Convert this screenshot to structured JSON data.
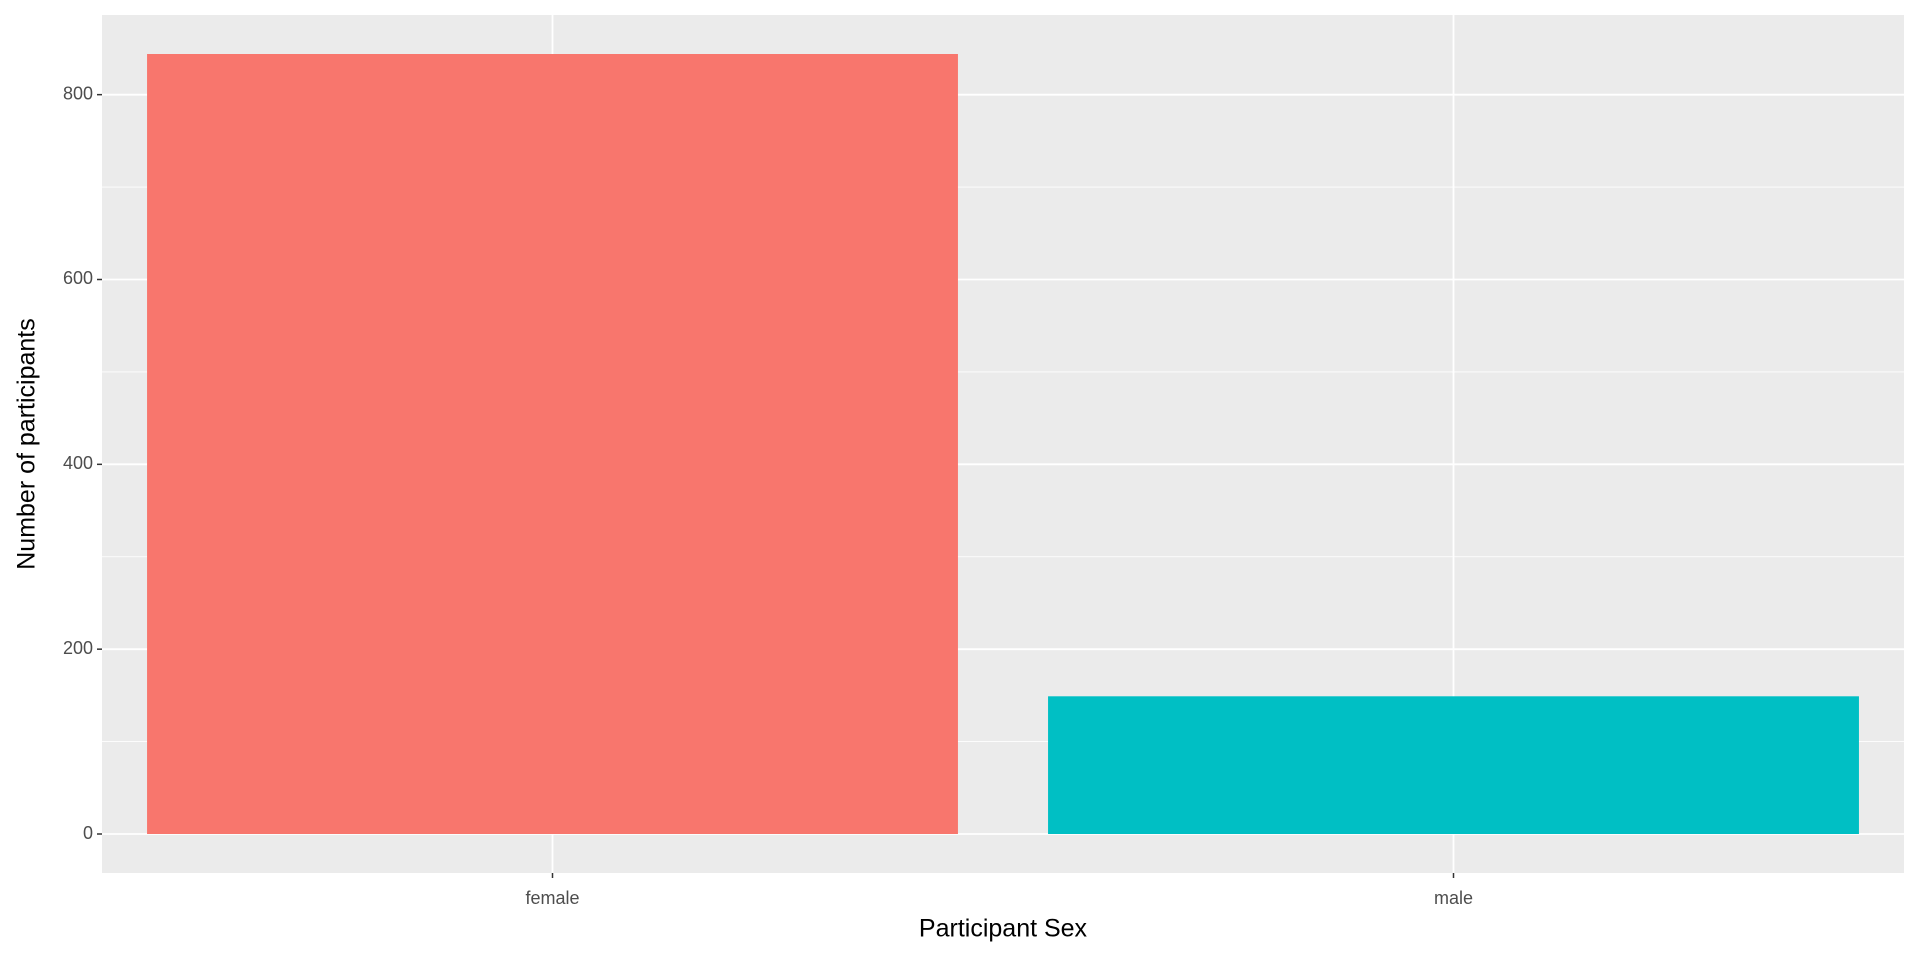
{
  "chart_data": {
    "type": "bar",
    "x_label": "Participant Sex",
    "y_label": "Number of participants",
    "categories": [
      "female",
      "male"
    ],
    "values": [
      844,
      149
    ],
    "colors": [
      "#F8766D",
      "#00BFC4"
    ],
    "ylim": [
      -42.2,
      886.2
    ],
    "yticks": [
      0,
      200,
      400,
      600,
      800
    ],
    "minor_yticks": [
      100,
      300,
      500,
      700
    ],
    "grid": true
  }
}
